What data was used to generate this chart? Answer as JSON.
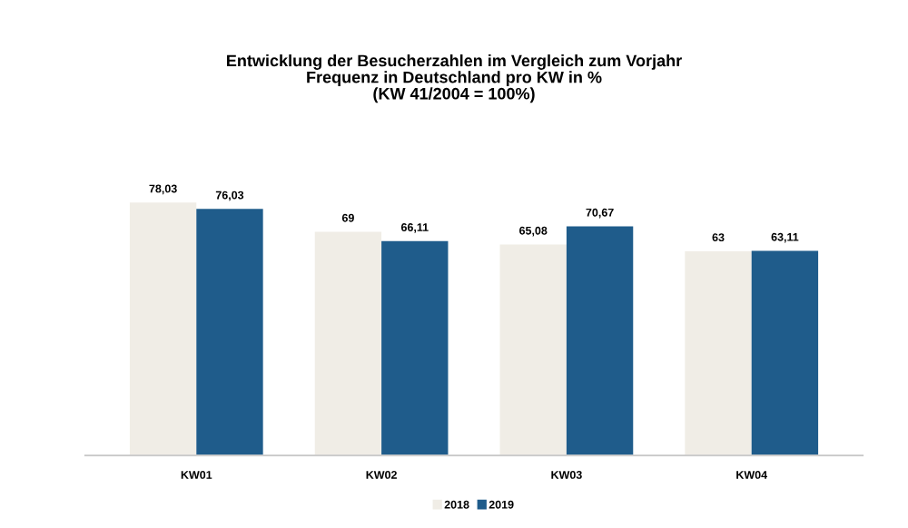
{
  "chart_data": {
    "type": "bar",
    "title": "Entwicklung der Besucherzahlen im Vergleich zum Vorjahr\nFrequenz in Deutschland pro KW in %\n(KW 41/2004 = 100%)",
    "categories": [
      "KW01",
      "KW02",
      "KW03",
      "KW04"
    ],
    "series": [
      {
        "name": "2018",
        "color": "#f0ede6",
        "values": [
          78.03,
          69,
          65.08,
          63
        ],
        "value_labels": [
          "78,03",
          "69",
          "65,08",
          "63"
        ]
      },
      {
        "name": "2019",
        "color": "#1f5c8b",
        "values": [
          76.03,
          66.11,
          70.67,
          63.11
        ],
        "value_labels": [
          "76,03",
          "66,11",
          "70,67",
          "63,11"
        ]
      }
    ],
    "legend": "bottom",
    "grid": false
  }
}
